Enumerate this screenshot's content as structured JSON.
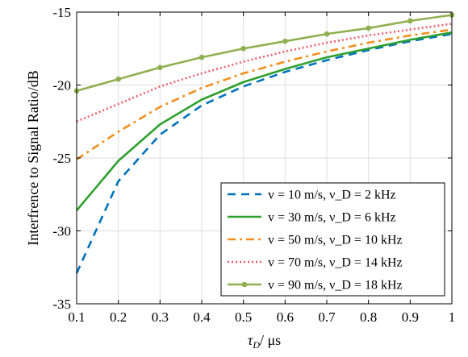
{
  "chart_data": {
    "type": "line",
    "title": "",
    "xlabel": "τ_D/ μs",
    "ylabel": "Interfrence to Signal Ratio/dB",
    "xlim": [
      0.1,
      1
    ],
    "ylim": [
      -35,
      -15
    ],
    "xticks": [
      0.1,
      0.2,
      0.3,
      0.4,
      0.5,
      0.6,
      0.7,
      0.8,
      0.9,
      1
    ],
    "xtick_labels": [
      "0.1",
      "0.2",
      "0.3",
      "0.4",
      "0.5",
      "0.6",
      "0.7",
      "0.8",
      "0.9",
      "1"
    ],
    "yticks": [
      -35,
      -30,
      -25,
      -20,
      -15
    ],
    "ytick_labels": [
      "-35",
      "-30",
      "-25",
      "-20",
      "-15"
    ],
    "grid": true,
    "legend_position": "bottom-right",
    "x": [
      0.1,
      0.2,
      0.3,
      0.4,
      0.5,
      0.6,
      0.7,
      0.8,
      0.9,
      1.0
    ],
    "series": [
      {
        "name": "v = 10 m/s, ν_D = 2 kHz",
        "color": "#0072BD",
        "dash": "dashed",
        "marker": "none",
        "values": [
          -32.9,
          -26.6,
          -23.4,
          -21.4,
          -20.1,
          -19.1,
          -18.3,
          -17.6,
          -17.0,
          -16.5
        ]
      },
      {
        "name": "v = 30 m/s, ν_D = 6 kHz",
        "color": "#2EA02E",
        "dash": "solid",
        "marker": "none",
        "values": [
          -28.6,
          -25.2,
          -22.7,
          -21.0,
          -19.8,
          -18.9,
          -18.1,
          -17.5,
          -16.9,
          -16.4
        ]
      },
      {
        "name": "v = 50 m/s, ν_D = 10 kHz",
        "color": "#F28E1C",
        "dash": "dashdot",
        "marker": "none",
        "values": [
          -25.1,
          -23.2,
          -21.5,
          -20.2,
          -19.2,
          -18.4,
          -17.7,
          -17.1,
          -16.6,
          -16.2
        ]
      },
      {
        "name": "v = 70 m/s, ν_D = 14 kHz",
        "color": "#F25C6B",
        "dash": "dotted",
        "marker": "none",
        "values": [
          -22.5,
          -21.3,
          -20.1,
          -19.2,
          -18.4,
          -17.7,
          -17.1,
          -16.6,
          -16.2,
          -15.8
        ]
      },
      {
        "name": "v = 90 m/s, ν_D = 18 kHz",
        "color": "#8FB050",
        "dash": "solid",
        "marker": "circle",
        "values": [
          -20.4,
          -19.6,
          -18.8,
          -18.1,
          -17.5,
          -17.0,
          -16.5,
          -16.1,
          -15.6,
          -15.2
        ]
      }
    ]
  }
}
